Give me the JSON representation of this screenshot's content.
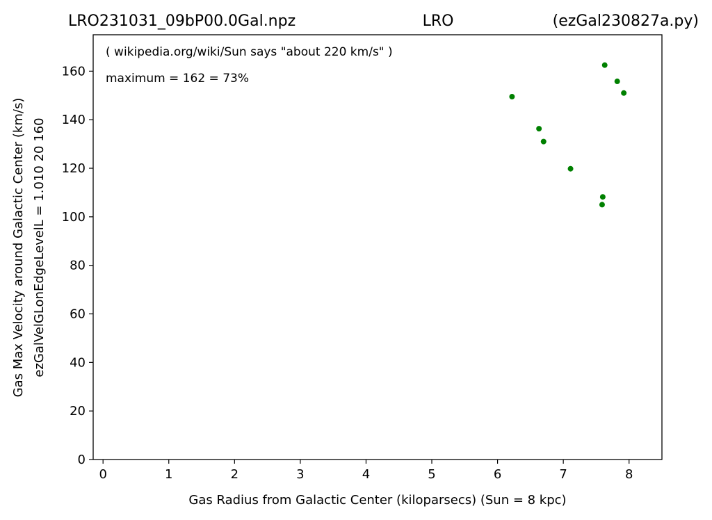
{
  "chart_data": {
    "type": "scatter",
    "title_left": "LRO231031_09bP00.0Gal.npz",
    "title_center": "LRO",
    "title_right": "(ezGal230827a.py)",
    "xlabel": "Gas Radius from Galactic Center (kiloparsecs)  (Sun = 8 kpc)",
    "ylabel_line1": "Gas Max Velocity around Galactic Center (km/s)",
    "ylabel_line2": "ezGalVelGLonEdgeLevelL = 1.010  20  160",
    "annotation_1": "( wikipedia.org/wiki/Sun says \"about 220 km/s\" )",
    "annotation_2": "maximum = 162 = 73%",
    "xlim": [
      -0.15,
      8.5
    ],
    "ylim": [
      0,
      175
    ],
    "xticks": [
      0,
      1,
      2,
      3,
      4,
      5,
      6,
      7,
      8
    ],
    "yticks": [
      0,
      20,
      40,
      60,
      80,
      100,
      120,
      140,
      160
    ],
    "marker_color": "#008000",
    "grid": false,
    "points": [
      {
        "x": 6.22,
        "y": 149.5
      },
      {
        "x": 6.63,
        "y": 136.3
      },
      {
        "x": 6.7,
        "y": 131.0
      },
      {
        "x": 7.11,
        "y": 119.8
      },
      {
        "x": 7.6,
        "y": 108.2
      },
      {
        "x": 7.59,
        "y": 105.0
      },
      {
        "x": 7.63,
        "y": 162.5
      },
      {
        "x": 7.82,
        "y": 155.8
      },
      {
        "x": 7.92,
        "y": 151.0
      }
    ]
  }
}
